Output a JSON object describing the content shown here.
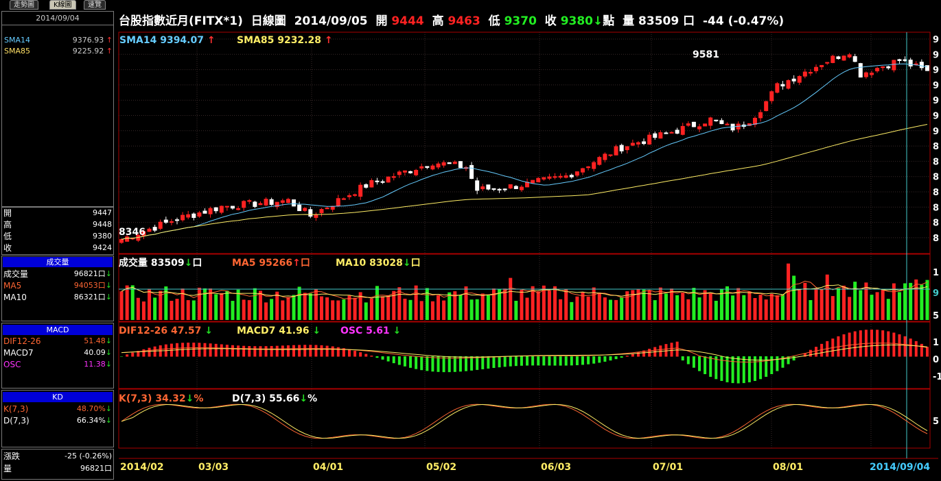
{
  "tabs": [
    "走勢圖",
    "K線圖",
    "速覽"
  ],
  "side": {
    "date": "2014/09/04",
    "sma": [
      {
        "label": "SMA14",
        "value": "9376.93",
        "color": "#66ccff"
      },
      {
        "label": "SMA85",
        "value": "9225.92",
        "color": "#ffe066"
      }
    ],
    "ohlc": [
      {
        "label": "開",
        "value": "9447"
      },
      {
        "label": "高",
        "value": "9448"
      },
      {
        "label": "低",
        "value": "9380"
      },
      {
        "label": "收",
        "value": "9424"
      }
    ],
    "vol_head": "成交量",
    "vol": [
      {
        "label": "成交量",
        "value": "96821口",
        "color": "#ffffff"
      },
      {
        "label": "MA5",
        "value": "94053口",
        "color": "#ff6633"
      },
      {
        "label": "MA10",
        "value": "86321口",
        "color": "#ffffff"
      }
    ],
    "macd_head": "MACD",
    "macd": [
      {
        "label": "DIF12-26",
        "value": "51.48",
        "color": "#ff6633"
      },
      {
        "label": "MACD7",
        "value": "40.09",
        "color": "#ffffff"
      },
      {
        "label": "OSC",
        "value": "11.38",
        "color": "#ff33ff"
      }
    ],
    "kd_head": "KD",
    "kd": [
      {
        "label": "K(7,3)",
        "value": "48.70%",
        "color": "#ff6633"
      },
      {
        "label": "D(7,3)",
        "value": "66.34%",
        "color": "#ffffff"
      }
    ],
    "chg_label": "漲跌",
    "chg_value": "-25 (-0.26%)",
    "qty_label": "量",
    "qty_value": "96821口"
  },
  "title": {
    "name": "台股指數近月(FITX*1)",
    "type": "日線圖",
    "date": "2014/09/05",
    "open_l": "開",
    "open": "9444",
    "high_l": "高",
    "high": "9463",
    "low_l": "低",
    "low": "9370",
    "close_l": "收",
    "close": "9380",
    "unit": "點",
    "vol_l": "量",
    "vol": "83509",
    "vol_unit": "口",
    "chg": "-44 (-0.47%)"
  },
  "price_legend": {
    "sma14": "SMA14 9394.07",
    "sma85": "SMA85 9232.28"
  },
  "vol_legend": {
    "vol": "成交量 83509",
    "ma5": "MA5 95266",
    "ma10": "MA10 83028",
    "unit": "口"
  },
  "macd_legend": {
    "dif": "DIF12-26 47.57",
    "macd": "MACD7 41.96",
    "osc": "OSC 5.61"
  },
  "kd_legend": {
    "k": "K(7,3) 34.32",
    "d": "D(7,3) 55.66",
    "pct": "%"
  },
  "x_labels": [
    "2014/02",
    "03/03",
    "04/01",
    "05/02",
    "06/03",
    "07/01",
    "08/01",
    "2014/09/04"
  ],
  "y_labels": {
    "price": [
      "9",
      "9",
      "9",
      "9",
      "9",
      "9",
      "9",
      "8",
      "8",
      "8",
      "8",
      "8",
      "8",
      "8"
    ],
    "vol": [
      "1",
      "9",
      "5"
    ],
    "macd": [
      "1",
      "0",
      "-1"
    ],
    "kd": [
      "5"
    ]
  },
  "annotations": {
    "high": "9581",
    "low": "8346"
  },
  "colors": {
    "up": "#ff2222",
    "down": "#22ee22",
    "sma14": "#66ccff",
    "sma85": "#ffee66",
    "frame": "#aa0000"
  }
}
